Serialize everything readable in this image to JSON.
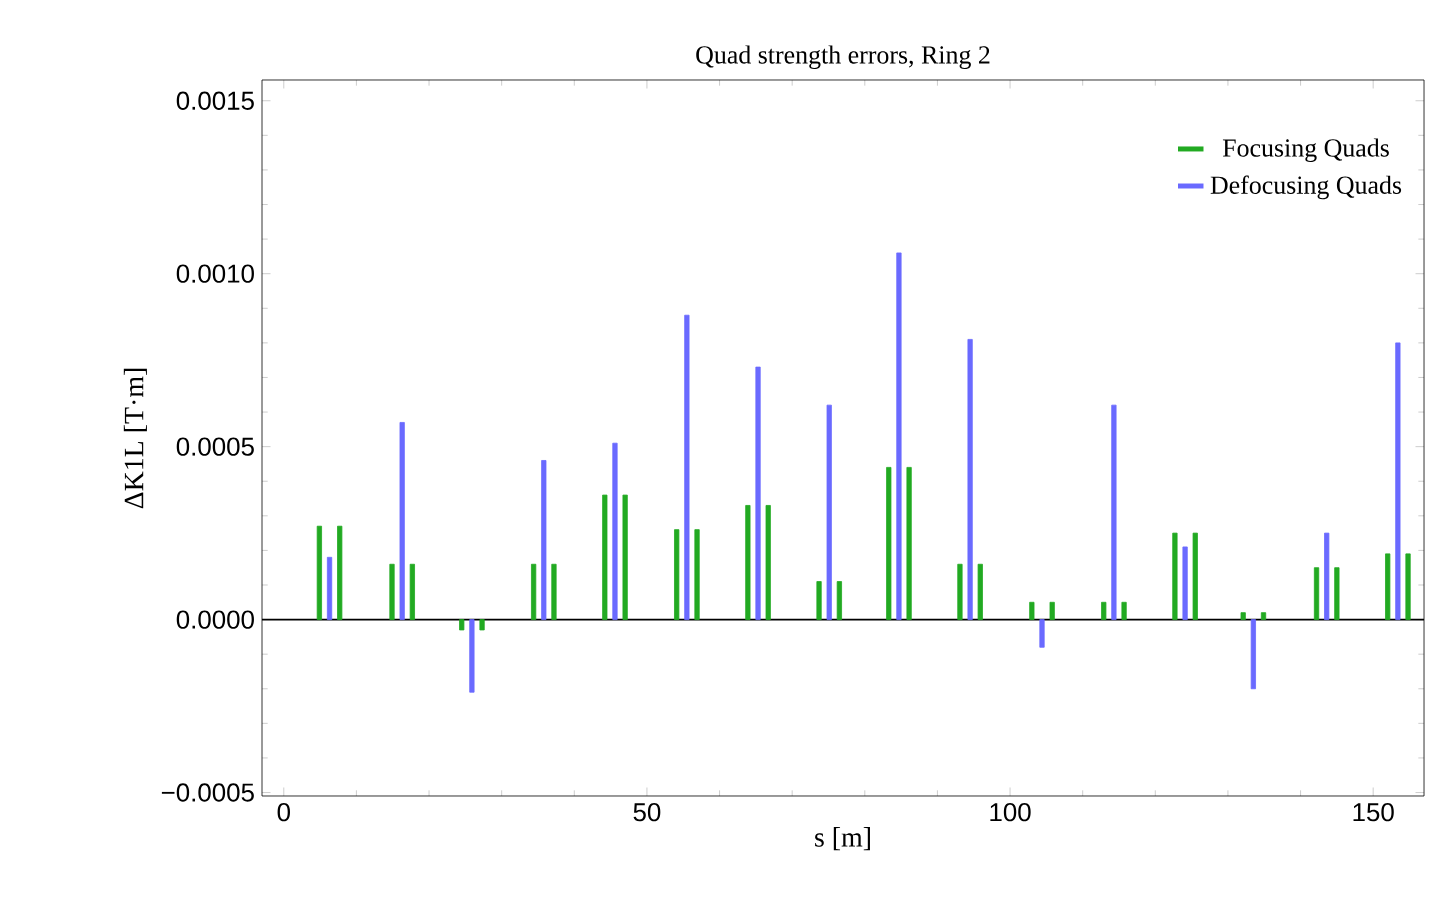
{
  "chart_data": {
    "type": "bar",
    "title": "Quad strength errors, Ring 2",
    "xlabel": "s [m]",
    "ylabel": "ΔK1L [T·m]",
    "xlim": [
      -3,
      157
    ],
    "xticks": [
      0,
      50,
      100,
      150
    ],
    "ylim": [
      -0.00051,
      0.00156
    ],
    "yticks": [
      {
        "value": -0.0005,
        "label": "−0.0005"
      },
      {
        "value": 0,
        "label": "0.0000"
      },
      {
        "value": 0.0005,
        "label": "0.0005"
      },
      {
        "value": 0.001,
        "label": "0.0010"
      },
      {
        "value": 0.0015,
        "label": "0.0015"
      }
    ],
    "legend": "top right",
    "series": [
      {
        "name": "Focusing Quads",
        "color": "#22aa22",
        "x": [
          4.9,
          7.7,
          14.9,
          17.7,
          24.5,
          27.3,
          34.4,
          37.2,
          44.2,
          47.0,
          54.1,
          56.9,
          63.9,
          66.7,
          73.7,
          76.5,
          83.3,
          86.1,
          93.1,
          95.9,
          103.0,
          105.8,
          112.9,
          115.7,
          122.7,
          125.5,
          132.1,
          134.9,
          142.2,
          145.0,
          152.0,
          154.8
        ],
        "values": [
          0.00027,
          0.00027,
          0.00016,
          0.00016,
          -3e-05,
          -3e-05,
          0.00016,
          0.00016,
          0.00036,
          0.00036,
          0.00026,
          0.00026,
          0.00033,
          0.00033,
          0.00011,
          0.00011,
          0.00044,
          0.00044,
          0.00016,
          0.00016,
          5e-05,
          5e-05,
          5e-05,
          5e-05,
          0.00025,
          0.00025,
          2e-05,
          2e-05,
          0.00015,
          0.00015,
          0.00019,
          0.00019
        ]
      },
      {
        "name": "Defocusing Quads",
        "color": "#6a6aff",
        "x": [
          6.3,
          16.3,
          25.9,
          35.8,
          45.6,
          55.5,
          65.3,
          75.1,
          84.7,
          94.5,
          104.4,
          114.3,
          124.1,
          133.5,
          143.6,
          153.4
        ],
        "values": [
          0.00018,
          0.00057,
          -0.00021,
          0.00046,
          0.00051,
          0.00088,
          0.00073,
          0.00062,
          0.00106,
          0.00081,
          -8e-05,
          0.00062,
          0.00021,
          -0.0002,
          0.00025,
          0.0008
        ]
      }
    ]
  }
}
